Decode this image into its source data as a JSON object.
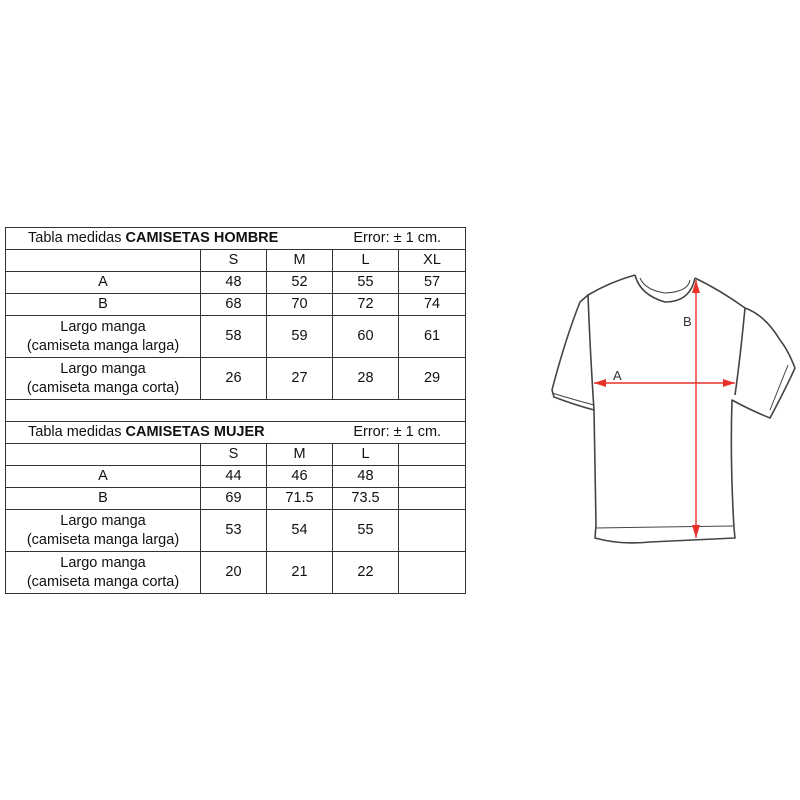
{
  "men_table": {
    "title_prefix": "Tabla medidas",
    "title_bold": "CAMISETAS HOMBRE",
    "error": "Error: ± 1 cm.",
    "sizes": [
      "S",
      "M",
      "L",
      "XL"
    ],
    "rows": [
      {
        "label1": "A",
        "label2": "",
        "values": [
          "48",
          "52",
          "55",
          "57"
        ]
      },
      {
        "label1": "B",
        "label2": "",
        "values": [
          "68",
          "70",
          "72",
          "74"
        ]
      },
      {
        "label1": "Largo manga",
        "label2": "(camiseta manga larga)",
        "values": [
          "58",
          "59",
          "60",
          "61"
        ]
      },
      {
        "label1": "Largo manga",
        "label2": "(camiseta manga corta)",
        "values": [
          "26",
          "27",
          "28",
          "29"
        ]
      }
    ]
  },
  "women_table": {
    "title_prefix": "Tabla medidas",
    "title_bold": "CAMISETAS MUJER",
    "error": "Error: ± 1 cm.",
    "sizes": [
      "S",
      "M",
      "L",
      ""
    ],
    "rows": [
      {
        "label1": "A",
        "label2": "",
        "values": [
          "44",
          "46",
          "48",
          ""
        ]
      },
      {
        "label1": "B",
        "label2": "",
        "values": [
          "69",
          "71.5",
          "73.5",
          ""
        ]
      },
      {
        "label1": "Largo manga",
        "label2": "(camiseta manga larga)",
        "values": [
          "53",
          "54",
          "55",
          ""
        ]
      },
      {
        "label1": "Largo manga",
        "label2": "(camiseta manga corta)",
        "values": [
          "20",
          "21",
          "22",
          ""
        ]
      }
    ]
  },
  "diagram": {
    "label_a": "A",
    "label_b": "B",
    "arrow_color": "#e8312a",
    "outline_color": "#444444"
  }
}
